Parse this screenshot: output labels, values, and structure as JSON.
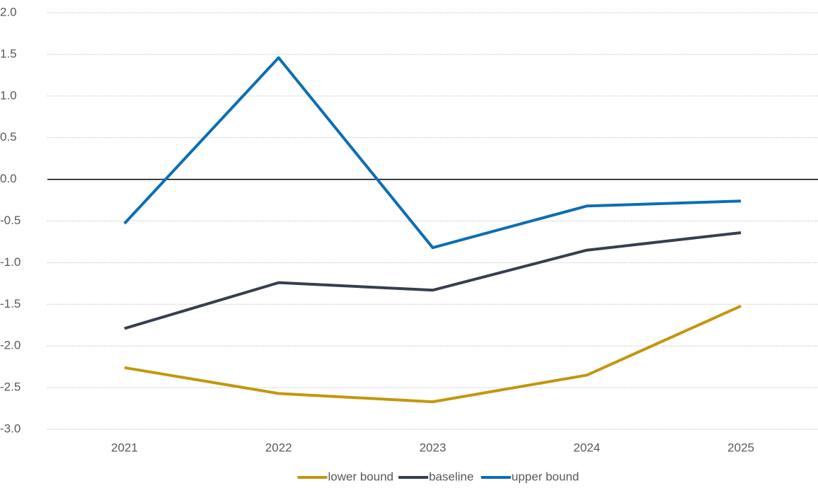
{
  "chart_data": {
    "type": "line",
    "categories": [
      "2021",
      "2022",
      "2023",
      "2024",
      "2025"
    ],
    "series": [
      {
        "name": "lower bound",
        "color": "#c4960c",
        "values": [
          -2.26,
          -2.57,
          -2.67,
          -2.35,
          -1.52
        ]
      },
      {
        "name": "baseline",
        "color": "#363f4e",
        "values": [
          -1.79,
          -1.24,
          -1.33,
          -0.85,
          -0.64
        ]
      },
      {
        "name": "upper bound",
        "color": "#0a6eb5",
        "values": [
          -0.53,
          1.46,
          -0.82,
          -0.32,
          -0.26
        ]
      }
    ],
    "ylim": [
      -3,
      2
    ],
    "yticks": [
      {
        "value": 2,
        "label": "2.0"
      },
      1.5,
      {
        "value": 1,
        "label": "1.0"
      },
      0.5,
      {
        "value": 0,
        "label": "0.0"
      },
      -0.5,
      {
        "value": -1,
        "label": "-1.0"
      },
      -1.5,
      {
        "value": -2,
        "label": "-2.0"
      },
      -2.5,
      {
        "value": -3,
        "label": "-3.0"
      }
    ],
    "grid": true,
    "legend": "bottom"
  }
}
